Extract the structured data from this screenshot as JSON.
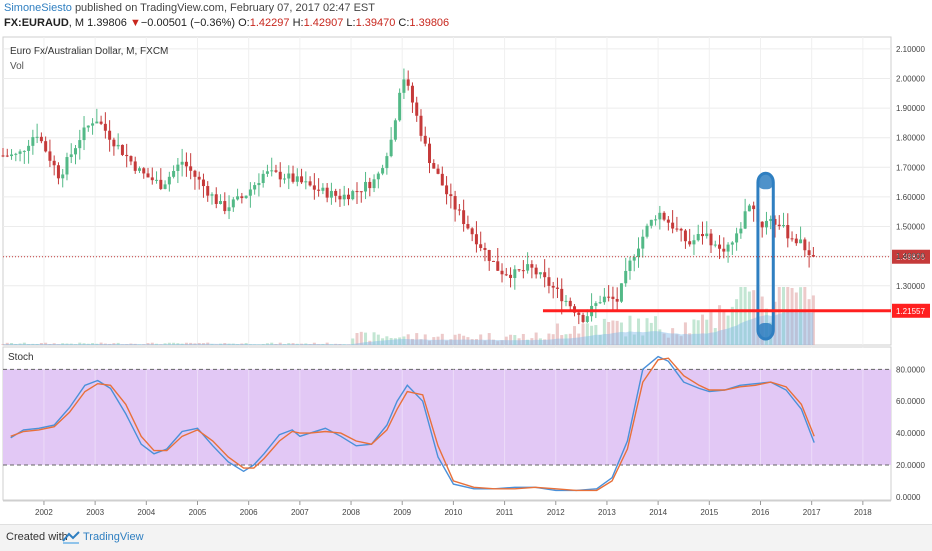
{
  "header": {
    "author": "SimoneSiesto",
    "published_text": "published on TradingView.com, February 07, 2017 02:47 EST",
    "symbol": "FX:EURAUD",
    "interval": "M",
    "last": "1.39806",
    "change": "−0.00501 (−0.36%)",
    "open_label": "O:",
    "open": "1.42297",
    "high_label": "H:",
    "high": "1.42907",
    "low_label": "L:",
    "low": "1.39470",
    "close_label": "C:",
    "close": "1.39806"
  },
  "chart_data": [
    {
      "type": "candlestick",
      "title": "Euro Fx/Australian Dollar, M, FXCM",
      "volume_label": "Vol",
      "ylim": [
        1.1,
        2.14
      ],
      "y_ticks": [
        "2.10000",
        "2.00000",
        "1.90000",
        "1.80000",
        "1.70000",
        "1.60000",
        "1.50000",
        "1.40000",
        "1.30000"
      ],
      "last_price_tag": "1.39806",
      "last_price": 1.39806,
      "support_tag": "1.21557",
      "support_level": 1.21557,
      "support_start_year": 2011.75,
      "highlight_zone": {
        "year_from": 2015.95,
        "year_to": 2016.25,
        "price_from": 1.1,
        "price_to": 1.68
      },
      "approx_closes": [
        {
          "year": 2001.5,
          "price": 1.74
        },
        {
          "year": 2001.85,
          "price": 1.82
        },
        {
          "year": 2002.3,
          "price": 1.67
        },
        {
          "year": 2002.7,
          "price": 1.8
        },
        {
          "year": 2003.0,
          "price": 1.87
        },
        {
          "year": 2003.4,
          "price": 1.78
        },
        {
          "year": 2003.9,
          "price": 1.68
        },
        {
          "year": 2004.3,
          "price": 1.64
        },
        {
          "year": 2004.7,
          "price": 1.72
        },
        {
          "year": 2005.2,
          "price": 1.62
        },
        {
          "year": 2005.5,
          "price": 1.56
        },
        {
          "year": 2005.9,
          "price": 1.6
        },
        {
          "year": 2006.3,
          "price": 1.68
        },
        {
          "year": 2006.7,
          "price": 1.67
        },
        {
          "year": 2007.0,
          "price": 1.65
        },
        {
          "year": 2007.4,
          "price": 1.62
        },
        {
          "year": 2007.8,
          "price": 1.6
        },
        {
          "year": 2008.1,
          "price": 1.62
        },
        {
          "year": 2008.5,
          "price": 1.66
        },
        {
          "year": 2008.8,
          "price": 1.8
        },
        {
          "year": 2009.0,
          "price": 2.02
        },
        {
          "year": 2009.2,
          "price": 1.92
        },
        {
          "year": 2009.5,
          "price": 1.74
        },
        {
          "year": 2009.9,
          "price": 1.6
        },
        {
          "year": 2010.2,
          "price": 1.52
        },
        {
          "year": 2010.6,
          "price": 1.42
        },
        {
          "year": 2010.9,
          "price": 1.35
        },
        {
          "year": 2011.2,
          "price": 1.34
        },
        {
          "year": 2011.5,
          "price": 1.36
        },
        {
          "year": 2011.9,
          "price": 1.3
        },
        {
          "year": 2012.2,
          "price": 1.25
        },
        {
          "year": 2012.55,
          "price": 1.19
        },
        {
          "year": 2012.9,
          "price": 1.26
        },
        {
          "year": 2013.2,
          "price": 1.25
        },
        {
          "year": 2013.5,
          "price": 1.4
        },
        {
          "year": 2013.8,
          "price": 1.5
        },
        {
          "year": 2014.0,
          "price": 1.55
        },
        {
          "year": 2014.3,
          "price": 1.5
        },
        {
          "year": 2014.6,
          "price": 1.44
        },
        {
          "year": 2014.9,
          "price": 1.48
        },
        {
          "year": 2015.2,
          "price": 1.42
        },
        {
          "year": 2015.5,
          "price": 1.45
        },
        {
          "year": 2015.8,
          "price": 1.59
        },
        {
          "year": 2016.0,
          "price": 1.5
        },
        {
          "year": 2016.2,
          "price": 1.53
        },
        {
          "year": 2016.5,
          "price": 1.48
        },
        {
          "year": 2016.8,
          "price": 1.44
        },
        {
          "year": 2017.05,
          "price": 1.398
        }
      ]
    },
    {
      "type": "line",
      "title": "Stoch",
      "ylim": [
        -2,
        94
      ],
      "y_ticks": [
        "80.0000",
        "60.0000",
        "40.0000",
        "20.0000",
        "0.0000"
      ],
      "upper_band": 80,
      "lower_band": 20,
      "x": [
        2001.35,
        2001.6,
        2001.9,
        2002.2,
        2002.5,
        2002.8,
        2003.05,
        2003.3,
        2003.6,
        2003.9,
        2004.15,
        2004.4,
        2004.7,
        2005.0,
        2005.3,
        2005.6,
        2005.9,
        2006.1,
        2006.3,
        2006.6,
        2006.85,
        2007.0,
        2007.2,
        2007.5,
        2007.8,
        2008.1,
        2008.4,
        2008.7,
        2008.9,
        2009.1,
        2009.4,
        2009.7,
        2010.0,
        2010.4,
        2010.8,
        2011.2,
        2011.6,
        2012.0,
        2012.4,
        2012.8,
        2013.1,
        2013.4,
        2013.7,
        2014.0,
        2014.2,
        2014.5,
        2014.8,
        2015.0,
        2015.3,
        2015.6,
        2015.9,
        2016.2,
        2016.5,
        2016.8,
        2017.05
      ],
      "series": [
        {
          "values": [
            37,
            42,
            43,
            45,
            56,
            70,
            73,
            68,
            52,
            33,
            27,
            30,
            41,
            43,
            32,
            22,
            16,
            20,
            27,
            39,
            42,
            38,
            40,
            43,
            38,
            32,
            33,
            45,
            60,
            70,
            60,
            25,
            8,
            5,
            5,
            6,
            6,
            4,
            4,
            5,
            12,
            35,
            80,
            88,
            85,
            72,
            68,
            66,
            67,
            70,
            71,
            72,
            67,
            55,
            34
          ]
        },
        {
          "values": [
            38,
            41,
            42,
            44,
            53,
            66,
            71,
            70,
            58,
            38,
            29,
            29,
            38,
            42,
            35,
            25,
            18,
            18,
            24,
            35,
            41,
            40,
            40,
            41,
            40,
            35,
            33,
            42,
            55,
            66,
            64,
            32,
            10,
            6,
            5,
            5,
            6,
            5,
            4,
            4,
            10,
            30,
            72,
            86,
            87,
            76,
            70,
            67,
            67,
            69,
            70,
            72,
            69,
            58,
            38
          ]
        }
      ]
    }
  ],
  "x_ticks": [
    "2002",
    "2003",
    "2004",
    "2005",
    "2006",
    "2007",
    "2008",
    "2009",
    "2010",
    "2011",
    "2012",
    "2013",
    "2014",
    "2015",
    "2016",
    "2017",
    "2018"
  ],
  "footer": {
    "created": "Created with",
    "brand": "TradingView"
  },
  "colors": {
    "up": "#53b987",
    "down": "#c53a3a",
    "stoch_k": "#4a90d9",
    "stoch_d": "#e8703a",
    "band_fill": "#e2c8f5",
    "support": "#ff2020",
    "zone": "#2f7fc1"
  }
}
